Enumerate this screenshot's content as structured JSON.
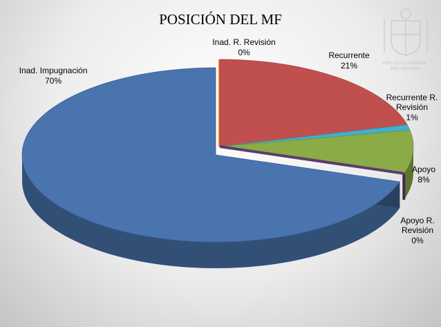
{
  "chart_data": {
    "type": "pie3d",
    "title": "POSICIÓN DEL MF",
    "categories": [
      "Inad. Impugnación",
      "Inad. R. Revisión",
      "Recurrente",
      "Recurrente R. Revisión",
      "Apoyo",
      "Apoyo R. Revisión"
    ],
    "values": [
      70,
      0,
      21,
      1,
      8,
      0
    ],
    "value_labels": [
      "70%",
      "0%",
      "21%",
      "1%",
      "8%",
      "0%"
    ],
    "colors": [
      "#4a74ae",
      "#f08a2c",
      "#c0504d",
      "#3fb0d2",
      "#8aab45",
      "#5b3c6e"
    ]
  },
  "watermark": "FISCALIA GENERAL DEL ESTADO"
}
